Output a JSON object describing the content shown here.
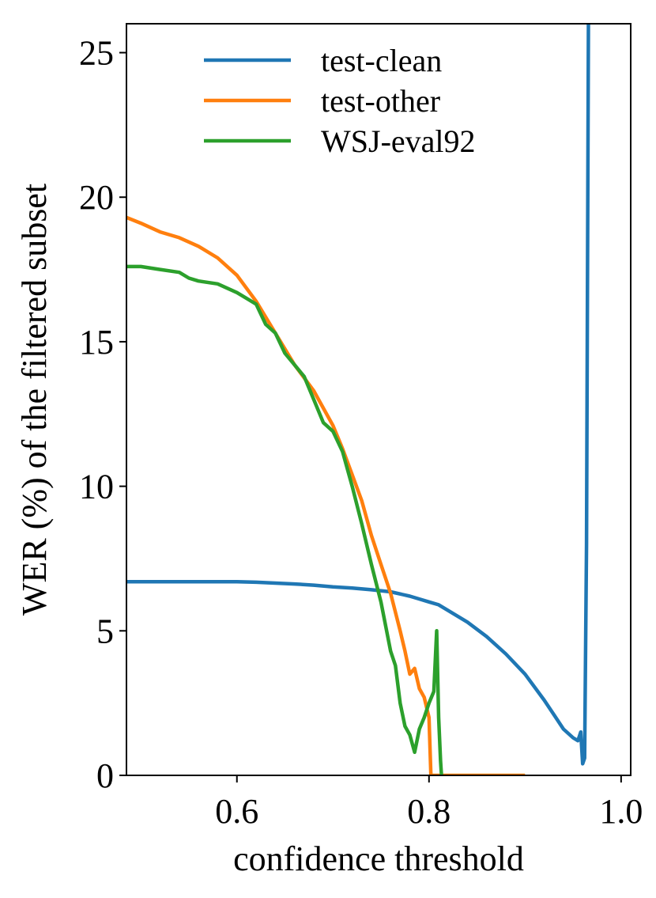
{
  "chart_data": {
    "type": "line",
    "title": "",
    "xlabel": "confidence threshold",
    "ylabel": "WER (%) of the filtered subset",
    "xlim": [
      0.485,
      1.01
    ],
    "ylim": [
      0,
      26
    ],
    "xticks": [
      0.6,
      0.8,
      1.0
    ],
    "xtick_labels": [
      "0.6",
      "0.8",
      "1.0"
    ],
    "yticks": [
      0,
      5,
      10,
      15,
      20,
      25
    ],
    "ytick_labels": [
      "0",
      "5",
      "10",
      "15",
      "20",
      "25"
    ],
    "grid": false,
    "legend_position": "top-center",
    "series": [
      {
        "name": "test-clean",
        "color": "#1f77b4",
        "x": [
          0.485,
          0.52,
          0.56,
          0.6,
          0.62,
          0.64,
          0.66,
          0.68,
          0.7,
          0.72,
          0.74,
          0.76,
          0.78,
          0.79,
          0.8,
          0.81,
          0.82,
          0.84,
          0.86,
          0.88,
          0.9,
          0.92,
          0.93,
          0.94,
          0.95,
          0.955,
          0.958,
          0.96,
          0.962,
          0.964,
          0.966
        ],
        "y": [
          6.7,
          6.7,
          6.7,
          6.7,
          6.68,
          6.65,
          6.62,
          6.58,
          6.52,
          6.48,
          6.42,
          6.35,
          6.2,
          6.1,
          6.0,
          5.9,
          5.7,
          5.3,
          4.8,
          4.2,
          3.5,
          2.6,
          2.1,
          1.6,
          1.3,
          1.2,
          1.5,
          0.4,
          0.6,
          8.0,
          26.0
        ]
      },
      {
        "name": "test-other",
        "color": "#ff7f0e",
        "x": [
          0.485,
          0.5,
          0.52,
          0.54,
          0.56,
          0.58,
          0.6,
          0.62,
          0.64,
          0.66,
          0.68,
          0.7,
          0.71,
          0.72,
          0.73,
          0.74,
          0.75,
          0.76,
          0.77,
          0.775,
          0.78,
          0.785,
          0.79,
          0.795,
          0.8,
          0.802,
          0.81,
          0.85,
          0.9
        ],
        "y": [
          19.3,
          19.1,
          18.8,
          18.6,
          18.3,
          17.9,
          17.3,
          16.4,
          15.3,
          14.2,
          13.3,
          12.1,
          11.3,
          10.4,
          9.5,
          8.3,
          7.3,
          6.3,
          5.0,
          4.3,
          3.5,
          3.7,
          3.0,
          2.7,
          2.0,
          0.0,
          0.0,
          0.0,
          0.0
        ]
      },
      {
        "name": "WSJ-eval92",
        "color": "#2ca02c",
        "x": [
          0.485,
          0.5,
          0.52,
          0.54,
          0.55,
          0.56,
          0.58,
          0.6,
          0.62,
          0.63,
          0.64,
          0.65,
          0.66,
          0.67,
          0.68,
          0.69,
          0.7,
          0.71,
          0.72,
          0.73,
          0.74,
          0.75,
          0.76,
          0.765,
          0.77,
          0.775,
          0.78,
          0.785,
          0.79,
          0.795,
          0.8,
          0.805,
          0.808,
          0.81,
          0.812,
          0.813,
          0.814
        ],
        "y": [
          17.6,
          17.6,
          17.5,
          17.4,
          17.2,
          17.1,
          17.0,
          16.7,
          16.3,
          15.6,
          15.3,
          14.6,
          14.2,
          13.8,
          13.0,
          12.2,
          11.9,
          11.2,
          10.0,
          8.7,
          7.3,
          6.0,
          4.3,
          3.8,
          2.5,
          1.7,
          1.4,
          0.8,
          1.6,
          2.0,
          2.5,
          2.9,
          5.0,
          2.0,
          0.5,
          0.0,
          0.0
        ]
      }
    ]
  }
}
